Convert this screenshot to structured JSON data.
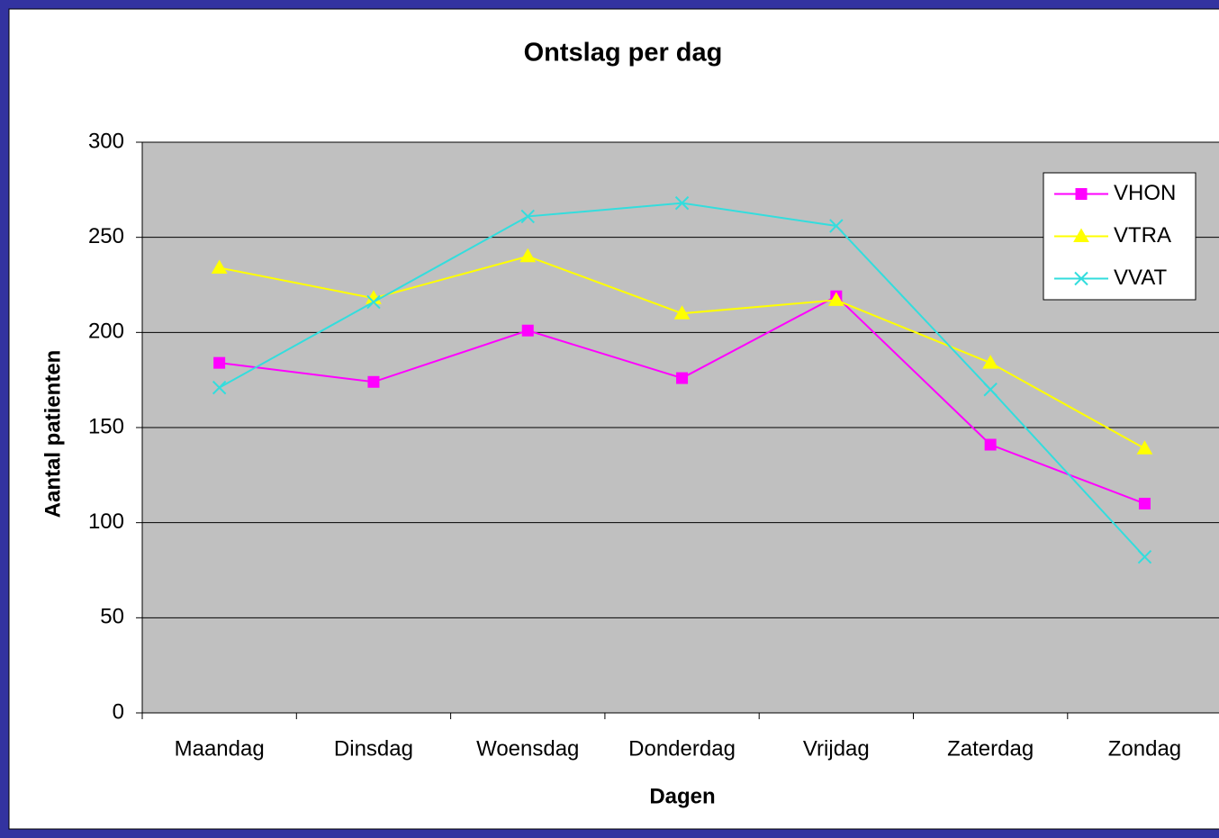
{
  "chart_data": {
    "type": "line",
    "title": "Ontslag per dag",
    "x_label": "Dagen",
    "y_label": "Aantal patienten",
    "categories": [
      "Maandag",
      "Dinsdag",
      "Woensdag",
      "Donderdag",
      "Vrijdag",
      "Zaterdag",
      "Zondag"
    ],
    "series": [
      {
        "name": "VHON",
        "color": "#ff00ff",
        "marker": "square",
        "values": [
          184,
          174,
          201,
          176,
          219,
          141,
          110
        ]
      },
      {
        "name": "VTRA",
        "color": "#ffff00",
        "marker": "triangle",
        "values": [
          234,
          218,
          240,
          210,
          217,
          184,
          139
        ]
      },
      {
        "name": "VVAT",
        "color": "#33dddd",
        "marker": "x",
        "values": [
          171,
          216,
          261,
          268,
          256,
          170,
          82
        ]
      }
    ],
    "ylim": [
      0,
      300
    ],
    "yticks": [
      0,
      50,
      100,
      150,
      200,
      250,
      300
    ],
    "grid": true,
    "legend": "upper right"
  }
}
